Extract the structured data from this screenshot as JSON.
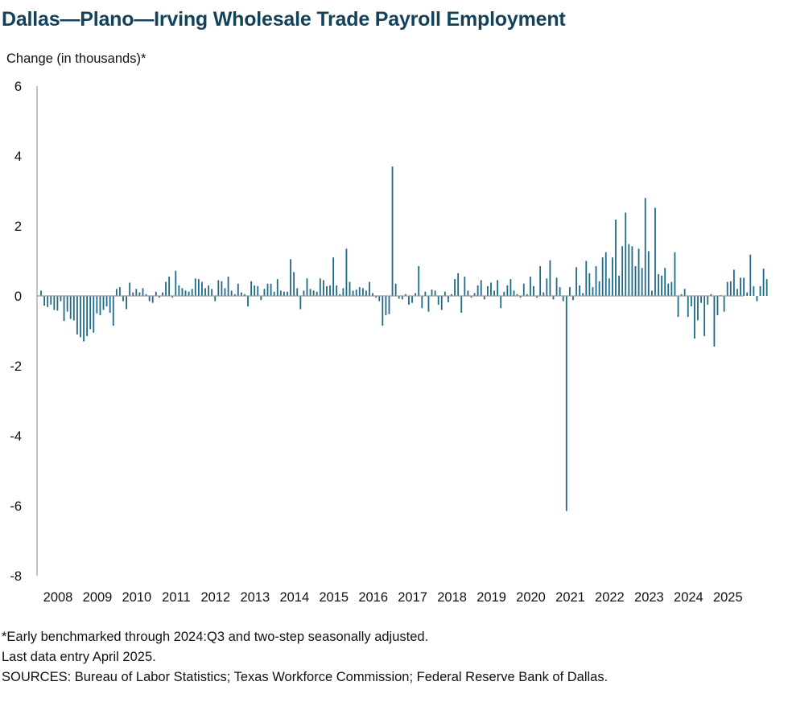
{
  "chart_data": {
    "type": "bar",
    "title": "Dallas—Plano—Irving Wholesale Trade Payroll Employment",
    "ylabel": "Change (in thousands)*",
    "xlabel": "",
    "ylim": [
      -8,
      6
    ],
    "yticks": [
      6,
      4,
      2,
      0,
      -2,
      -4,
      -6,
      -8
    ],
    "year_labels": [
      "2008",
      "2009",
      "2010",
      "2011",
      "2012",
      "2013",
      "2014",
      "2015",
      "2016",
      "2017",
      "2018",
      "2019",
      "2020",
      "2021",
      "2022",
      "2023",
      "2024",
      "2025"
    ],
    "x_start": "2008-01",
    "x_end": "2025-04",
    "bar_color": "#1e6a8a",
    "series": [
      {
        "values": [
          0.15,
          -0.28,
          -0.32,
          -0.25,
          -0.4,
          -0.42,
          -0.15,
          -0.72,
          -0.45,
          -0.66,
          -0.7,
          -1.1,
          -1.18,
          -1.3,
          -1.15,
          -0.95,
          -1.05,
          -0.5,
          -0.55,
          -0.4,
          -0.3,
          -0.48,
          -0.85,
          0.2,
          0.25,
          -0.15,
          -0.38,
          0.38,
          0.1,
          0.2,
          0.1,
          0.22,
          0.05,
          -0.15,
          -0.2,
          0.12,
          -0.05,
          0.1,
          0.4,
          0.55,
          -0.05,
          0.72,
          0.3,
          0.22,
          0.15,
          0.12,
          0.2,
          0.5,
          0.48,
          0.4,
          0.22,
          0.3,
          0.2,
          -0.15,
          0.45,
          0.42,
          0.22,
          0.55,
          0.15,
          0.05,
          0.35,
          0.1,
          0.05,
          -0.3,
          0.42,
          0.3,
          0.28,
          -0.12,
          0.2,
          0.35,
          0.35,
          0.12,
          0.48,
          0.15,
          0.12,
          0.12,
          1.05,
          0.68,
          0.22,
          -0.38,
          0.15,
          0.5,
          0.2,
          0.15,
          0.12,
          0.5,
          0.45,
          0.28,
          0.3,
          1.1,
          0.3,
          0.05,
          0.22,
          1.35,
          0.4,
          0.15,
          0.18,
          0.25,
          0.22,
          0.15,
          0.4,
          0.08,
          -0.05,
          -0.15,
          -0.85,
          -0.55,
          -0.52,
          3.7,
          0.35,
          -0.08,
          -0.1,
          0.05,
          -0.25,
          -0.2,
          0.08,
          0.85,
          -0.35,
          0.12,
          -0.45,
          0.18,
          0.15,
          -0.25,
          -0.4,
          0.12,
          -0.18,
          0.05,
          0.48,
          0.65,
          -0.48,
          0.55,
          0.15,
          -0.05,
          0.08,
          0.3,
          0.45,
          -0.1,
          0.28,
          0.38,
          0.15,
          0.45,
          -0.35,
          0.12,
          0.3,
          0.48,
          0.15,
          0.05,
          -0.05,
          0.35,
          0.05,
          0.55,
          0.28,
          -0.05,
          0.85,
          0.1,
          0.5,
          1.02,
          -0.1,
          0.52,
          0.25,
          -0.15,
          -6.15,
          0.25,
          -0.12,
          0.82,
          0.3,
          0.08,
          1.0,
          0.65,
          0.25,
          0.85,
          0.42,
          1.1,
          1.25,
          0.5,
          1.1,
          2.18,
          0.58,
          1.42,
          2.38,
          1.48,
          1.42,
          0.85,
          1.35,
          0.8,
          2.8,
          1.28,
          0.15,
          2.52,
          0.62,
          0.58,
          0.8,
          0.35,
          0.4,
          1.25,
          -0.6,
          0.05,
          0.2,
          -0.6,
          -0.3,
          -1.22,
          -0.7,
          -0.2,
          -1.15,
          -0.25,
          0.05,
          -1.45,
          -0.55,
          0.02,
          -0.45,
          0.4,
          0.42,
          0.75,
          0.2,
          0.52,
          0.52,
          0.1,
          1.18,
          0.28,
          -0.15,
          0.28,
          0.78,
          0.48
        ]
      }
    ],
    "grid": false,
    "legend": "none"
  },
  "footnotes": [
    "*Early benchmarked through 2024:Q3 and two-step seasonally adjusted.",
    "Last data entry April 2025.",
    "SOURCES: Bureau of Labor Statistics; Texas Workforce Commission; Federal Reserve Bank of Dallas."
  ]
}
